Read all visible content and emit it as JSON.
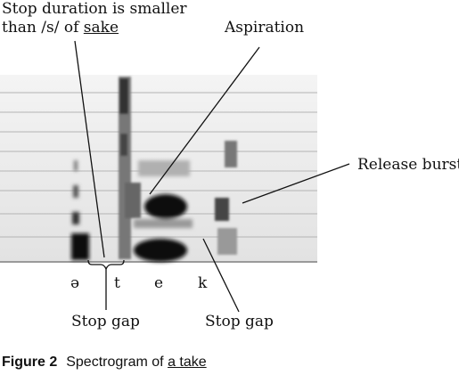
{
  "annotations": {
    "stop_duration_line1": "Stop duration is smaller",
    "stop_duration_line2_prefix": "than /s/ of ",
    "stop_duration_word": "sake",
    "aspiration": "Aspiration",
    "release_burst": "Release burst",
    "stop_gap_left": "Stop gap",
    "stop_gap_right": "Stop gap"
  },
  "segments": [
    "ə",
    "t",
    "e",
    "k"
  ],
  "caption": {
    "label": "Figure 2",
    "text_prefix": "Spectrogram of ",
    "text_underlined": "a take"
  }
}
